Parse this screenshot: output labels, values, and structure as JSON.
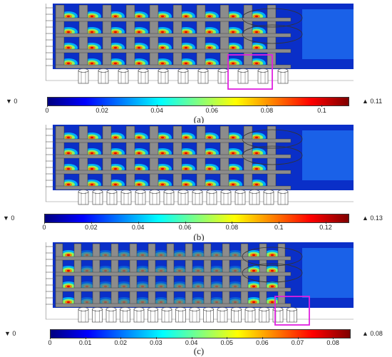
{
  "colormap": [
    "#00007f",
    "#0000ff",
    "#0080ff",
    "#00ffff",
    "#80ff80",
    "#ffff00",
    "#ff8000",
    "#ff0000",
    "#7f0000"
  ],
  "highlight_color": "#e020e0",
  "panels": [
    {
      "caption": "(a)",
      "min_label": "▼ 0",
      "max_label": "▲ 0.11",
      "ticks": [
        "0",
        "0.02",
        "0.04",
        "0.06",
        "0.08",
        "0.1"
      ],
      "tick_values": [
        0,
        0.02,
        0.04,
        0.06,
        0.08,
        0.1
      ],
      "scale_max": 0.11,
      "highlight": true
    },
    {
      "caption": "(b)",
      "min_label": "▼ 0",
      "max_label": "▲ 0.13",
      "ticks": [
        "0",
        "0.02",
        "0.04",
        "0.06",
        "0.08",
        "0.1",
        "0.12"
      ],
      "tick_values": [
        0,
        0.02,
        0.04,
        0.06,
        0.08,
        0.1,
        0.12
      ],
      "scale_max": 0.13,
      "highlight": false
    },
    {
      "caption": "(c)",
      "min_label": "▼ 0",
      "max_label": "▲ 0.08",
      "ticks": [
        "0",
        "0.01",
        "0.02",
        "0.03",
        "0.04",
        "0.05",
        "0.06",
        "0.07",
        "0.08"
      ],
      "tick_values": [
        0,
        0.01,
        0.02,
        0.03,
        0.04,
        0.05,
        0.06,
        0.07,
        0.08
      ],
      "scale_max": 0.085,
      "highlight": true
    }
  ]
}
